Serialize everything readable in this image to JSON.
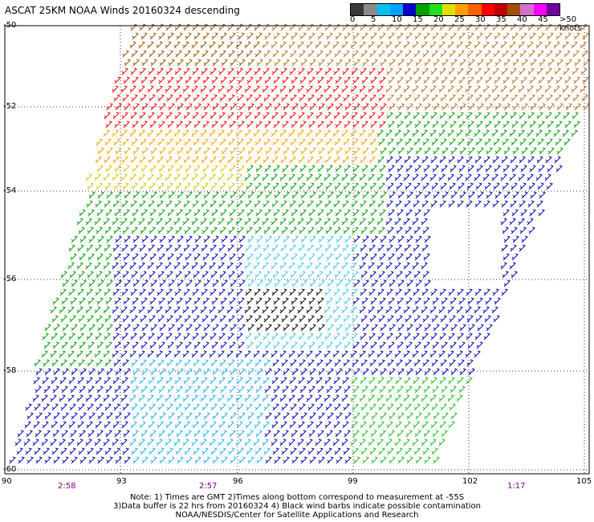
{
  "title": "ASCAT 25KM NOAA Winds 20160324 descending",
  "colorbar": {
    "colors": [
      "#3a3a3a",
      "#8a8a8a",
      "#00c0f0",
      "#00a0ff",
      "#0000c8",
      "#00a000",
      "#20e020",
      "#e0e000",
      "#ffa000",
      "#ff6000",
      "#ff0000",
      "#c00000",
      "#a05000",
      "#d070d0",
      "#ff00ff",
      "#7000a0"
    ],
    "labels": [
      "0",
      "5",
      "10",
      "15",
      "20",
      "25",
      "30",
      "35",
      "40",
      "45"
    ],
    "unit": ">50 knots"
  },
  "axes": {
    "y_ticks": [
      "-50",
      "-52",
      "-54",
      "-56",
      "-58",
      "-60"
    ],
    "x_ticks": [
      "90",
      "93",
      "96",
      "99",
      "102",
      "105"
    ],
    "times": [
      "2:58",
      "2:57",
      "1:17"
    ]
  },
  "notes": [
    "Note: 1) Times are GMT 2)Times along bottom correspond to measurement at -55S",
    "3)Data buffer is 22 hrs from 20160324 4) Black wind barbs indicate possible contamination",
    "NOAA/NESDIS/Center for Satellite Applications and Research"
  ]
}
